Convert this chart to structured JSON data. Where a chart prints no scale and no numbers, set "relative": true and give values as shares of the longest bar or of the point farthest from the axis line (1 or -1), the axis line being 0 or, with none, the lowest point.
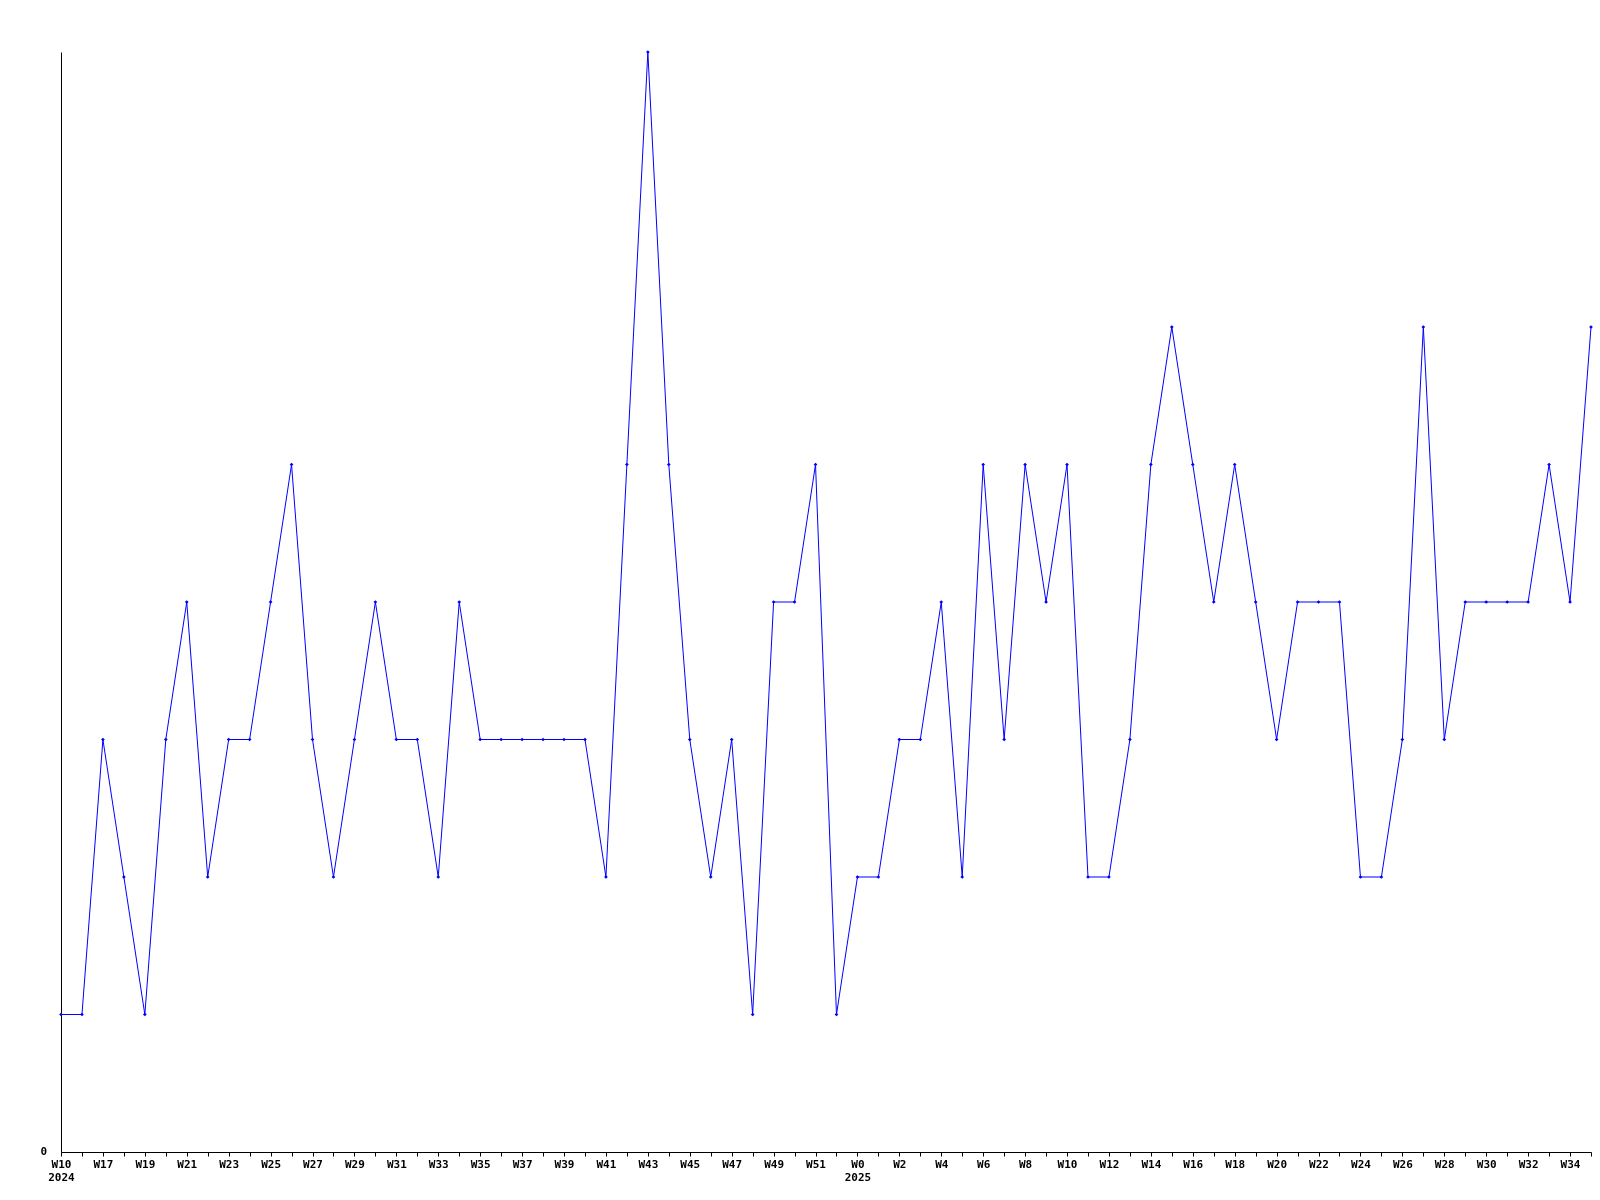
{
  "chart_data": {
    "type": "line",
    "relative": true,
    "marker": "diamond",
    "line_style": "solid",
    "grid": false,
    "annotations": [
      "0"
    ],
    "categories": [
      "W10\n2024",
      null,
      "W17",
      null,
      "W19",
      null,
      "W21",
      null,
      "W23",
      null,
      "W25",
      null,
      "W27",
      null,
      "W29",
      null,
      "W31",
      null,
      "W33",
      null,
      "W35",
      null,
      "W37",
      null,
      "W39",
      null,
      "W41",
      null,
      "W43",
      null,
      "W45",
      null,
      "W47",
      null,
      "W49",
      null,
      "W51",
      null,
      "W0\n2025",
      null,
      "W2",
      null,
      "W4",
      null,
      "W6",
      null,
      "W8",
      null,
      "W10",
      null,
      "W12",
      null,
      "W14",
      null,
      "W16",
      null,
      "W18",
      null,
      "W20",
      null,
      "W22",
      null,
      "W24",
      null,
      "W26",
      null,
      "W28",
      null,
      "W30",
      null,
      "W32",
      null,
      "W34",
      null
    ],
    "series": [
      {
        "color": "#0000ff",
        "values": [
          0.125,
          0.125,
          0.375,
          0.25,
          0.125,
          0.375,
          0.5,
          0.25,
          0.375,
          0.375,
          0.5,
          0.625,
          0.375,
          0.25,
          0.375,
          0.5,
          0.375,
          0.375,
          0.25,
          0.5,
          0.375,
          0.375,
          0.375,
          0.375,
          0.375,
          0.375,
          0.25,
          0.625,
          1,
          0.625,
          0.375,
          0.25,
          0.375,
          0.125,
          0.5,
          0.5,
          0.625,
          0.125,
          0.25,
          0.25,
          0.375,
          0.375,
          0.5,
          0.25,
          0.625,
          0.375,
          0.625,
          0.5,
          0.625,
          0.25,
          0.25,
          0.375,
          0.625,
          0.75,
          0.625,
          0.5,
          0.625,
          0.5,
          0.375,
          0.5,
          0.5,
          0.5,
          0.25,
          0.25,
          0.375,
          0.75,
          0.375,
          0.5,
          0.5,
          0.5,
          0.5,
          0.625,
          0.5,
          0.75
        ]
      }
    ]
  }
}
